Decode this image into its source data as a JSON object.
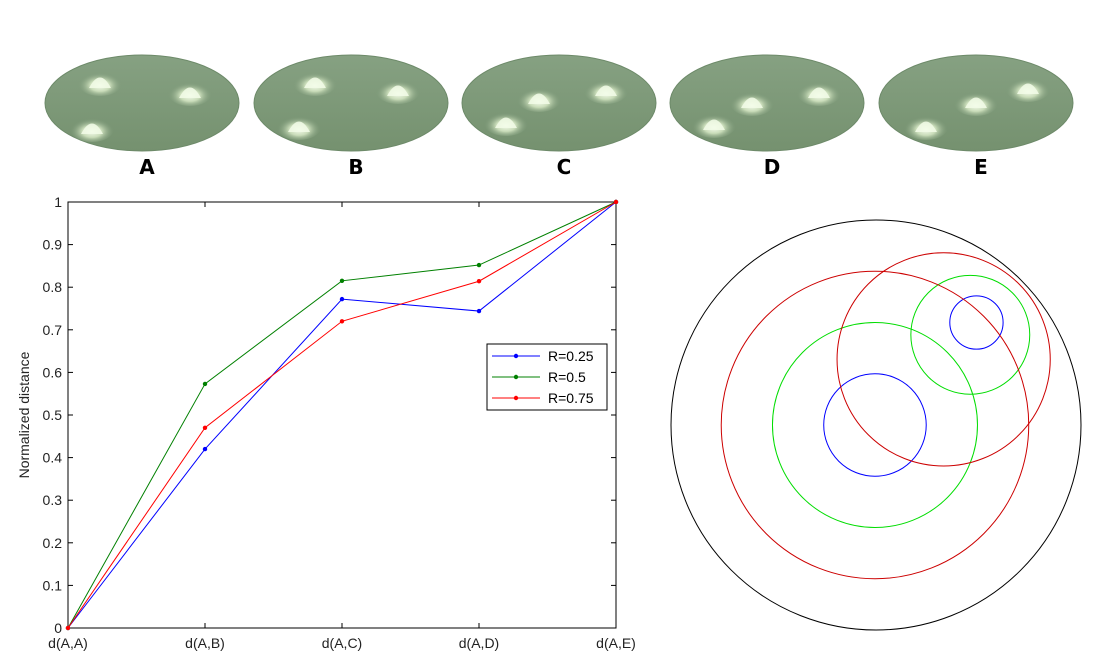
{
  "panels": [
    {
      "label": "A"
    },
    {
      "label": "B"
    },
    {
      "label": "C"
    },
    {
      "label": "D"
    },
    {
      "label": "E"
    }
  ],
  "colors": {
    "surface": "#7e9a7a",
    "surface_edge": "#6d8a69",
    "peak": "#f2fbe8",
    "axis": "#000000",
    "outer_circle": "#000000"
  },
  "chart_data": [
    {
      "type": "line",
      "categories": [
        "d(A,A)",
        "d(A,B)",
        "d(A,C)",
        "d(A,D)",
        "d(A,E)"
      ],
      "ylabel": "Normalized distance",
      "xlabel": "",
      "ylim": [
        0,
        1
      ],
      "yticks": [
        "0",
        "0.1",
        "0.2",
        "0.3",
        "0.4",
        "0.5",
        "0.6",
        "0.7",
        "0.8",
        "0.9",
        "1"
      ],
      "legend_position": "right",
      "series": [
        {
          "name": "R=0.25",
          "color": "#0000ff",
          "values": [
            0,
            0.42,
            0.772,
            0.744,
            1
          ]
        },
        {
          "name": "R=0.5",
          "color": "#008000",
          "values": [
            0,
            0.573,
            0.815,
            0.852,
            1
          ]
        },
        {
          "name": "R=0.75",
          "color": "#ff0000",
          "values": [
            0,
            0.47,
            0.72,
            0.814,
            1
          ]
        }
      ]
    },
    {
      "type": "diagram",
      "description_units": "normalized to outer circle radius 1",
      "circles": [
        {
          "name": "outer",
          "color": "#000000",
          "cx": 0,
          "cy": 0,
          "r": 1
        },
        {
          "name": "R=0.25 a",
          "color": "#0000ff",
          "cx": -0.005,
          "cy": 0,
          "r": 0.25
        },
        {
          "name": "R=0.25 b",
          "color": "#0000ff",
          "cx": 0.49,
          "cy": 0.5,
          "r": 0.13
        },
        {
          "name": "R=0.5 a",
          "color": "#00dd00",
          "cx": -0.005,
          "cy": 0,
          "r": 0.5
        },
        {
          "name": "R=0.5 b",
          "color": "#00dd00",
          "cx": 0.46,
          "cy": 0.44,
          "r": 0.29
        },
        {
          "name": "R=0.75 a",
          "color": "#cc0000",
          "cx": -0.005,
          "cy": 0,
          "r": 0.75
        },
        {
          "name": "R=0.75 b",
          "color": "#cc0000",
          "cx": 0.33,
          "cy": 0.32,
          "r": 0.52
        }
      ]
    }
  ]
}
